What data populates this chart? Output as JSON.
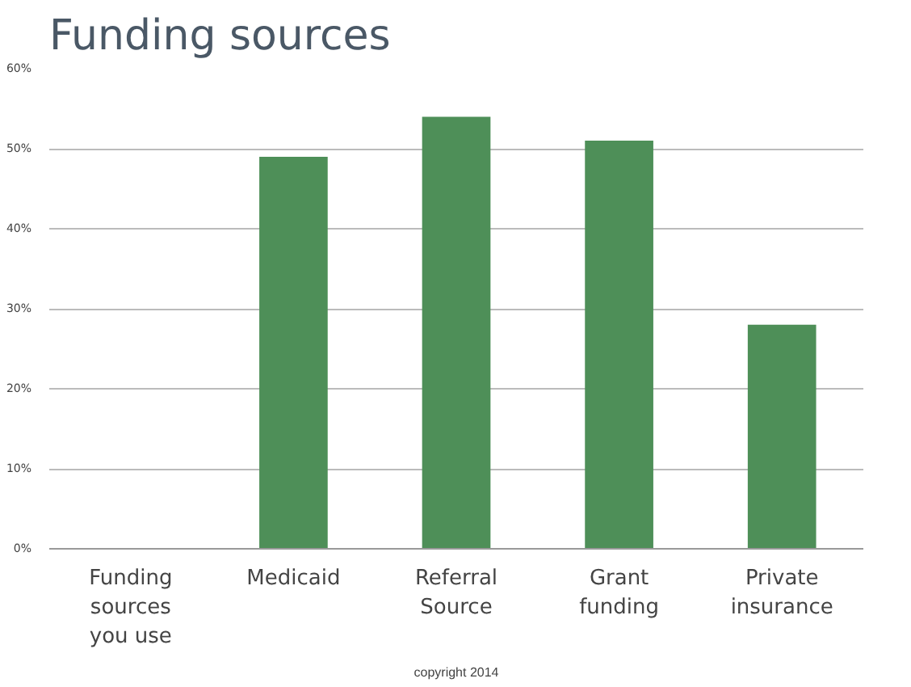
{
  "chart_data": {
    "type": "bar",
    "title": "Funding sources",
    "categories": [
      "Funding sources you use",
      "Medicaid",
      "Referral Source",
      "Grant funding",
      "Private insurance"
    ],
    "values": [
      null,
      49,
      54,
      51,
      28
    ],
    "color": "#4e8f58",
    "ylim": [
      0,
      60
    ],
    "yticks": [
      {
        "value": 0,
        "label": "0%"
      },
      {
        "value": 10,
        "label": "10%"
      },
      {
        "value": 20,
        "label": "20%"
      },
      {
        "value": 30,
        "label": "30%"
      },
      {
        "value": 40,
        "label": "40%"
      },
      {
        "value": 50,
        "label": "50%"
      },
      {
        "value": 60,
        "label": "60%"
      }
    ],
    "grid": "y",
    "annotations": [
      "copyright 2014"
    ]
  }
}
